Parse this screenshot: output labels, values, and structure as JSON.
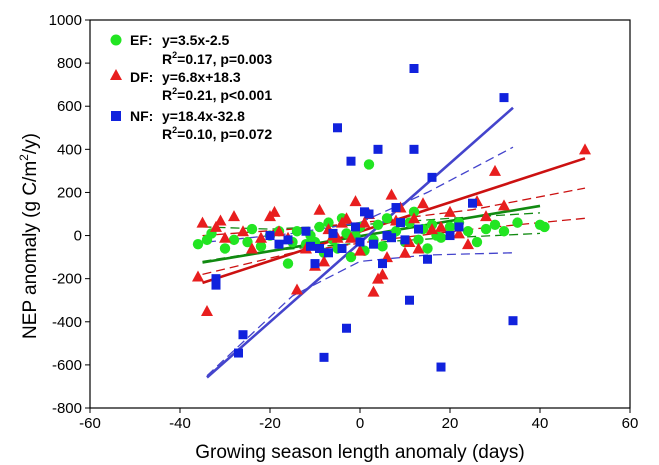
{
  "chart_data": {
    "type": "scatter",
    "title": "",
    "xlabel": "Growing season length  anomaly (days)",
    "ylabel_main": "NEP anomaly (g C/m",
    "ylabel_sup": "2",
    "ylabel_end": "/y)",
    "xlim": [
      -60,
      60
    ],
    "ylim": [
      -800,
      1000
    ],
    "xticks": [
      "-60",
      "-40",
      "-20",
      "0",
      "20",
      "40",
      "60"
    ],
    "yticks": [
      "-800",
      "-600",
      "-400",
      "-200",
      "0",
      "200",
      "400",
      "600",
      "800",
      "1000"
    ],
    "grid": false,
    "legend_position": "top-left",
    "series": [
      {
        "name": "EF",
        "marker": "circle",
        "color": "#22e522",
        "line_color": "#118a11",
        "eq_label": "EF:",
        "eq": "y=3.5x-2.5",
        "stats_pre": "R",
        "stats_sup": "2",
        "stats_post": "=0.17, p=0.003",
        "fit": {
          "slope": 3.5,
          "intercept": -2.5,
          "x_range": [
            -35,
            40
          ]
        },
        "ci_upper": [
          [
            -35,
            40
          ],
          [
            -20,
            30
          ],
          [
            0,
            50
          ],
          [
            20,
            80
          ],
          [
            40,
            105
          ]
        ],
        "ci_lower": [
          [
            -35,
            -120
          ],
          [
            -20,
            -70
          ],
          [
            0,
            -35
          ],
          [
            20,
            -10
          ],
          [
            40,
            10
          ]
        ],
        "points": [
          [
            -36,
            -40
          ],
          [
            -34,
            -20
          ],
          [
            -33,
            10
          ],
          [
            -30,
            -60
          ],
          [
            -28,
            -20
          ],
          [
            -25,
            -30
          ],
          [
            -24,
            30
          ],
          [
            -22,
            -50
          ],
          [
            -20,
            0
          ],
          [
            -18,
            20
          ],
          [
            -16,
            -130
          ],
          [
            -15,
            -30
          ],
          [
            -14,
            20
          ],
          [
            -12,
            -40
          ],
          [
            -11,
            0
          ],
          [
            -10,
            -30
          ],
          [
            -9,
            40
          ],
          [
            -8,
            -80
          ],
          [
            -7,
            60
          ],
          [
            -6,
            -20
          ],
          [
            -5,
            -60
          ],
          [
            -4,
            80
          ],
          [
            -3,
            10
          ],
          [
            -2,
            -100
          ],
          [
            -1,
            0
          ],
          [
            0,
            40
          ],
          [
            1,
            -70
          ],
          [
            2,
            330
          ],
          [
            3,
            -20
          ],
          [
            4,
            50
          ],
          [
            5,
            -50
          ],
          [
            6,
            80
          ],
          [
            7,
            0
          ],
          [
            8,
            20
          ],
          [
            10,
            -30
          ],
          [
            11,
            60
          ],
          [
            12,
            110
          ],
          [
            13,
            -20
          ],
          [
            14,
            30
          ],
          [
            15,
            -60
          ],
          [
            16,
            50
          ],
          [
            17,
            0
          ],
          [
            18,
            -10
          ],
          [
            20,
            40
          ],
          [
            22,
            60
          ],
          [
            24,
            20
          ],
          [
            26,
            -30
          ],
          [
            28,
            30
          ],
          [
            30,
            50
          ],
          [
            32,
            20
          ],
          [
            35,
            60
          ],
          [
            40,
            50
          ],
          [
            41,
            40
          ]
        ]
      },
      {
        "name": "DF",
        "marker": "triangle",
        "color": "#e81e1e",
        "line_color": "#cc1111",
        "eq_label": "DF:",
        "eq": "y=6.8x+18.3",
        "stats_pre": "R",
        "stats_sup": "2",
        "stats_post": "=0.21, p<0.001",
        "fit": {
          "slope": 6.8,
          "intercept": 18.3,
          "x_range": [
            -35,
            50
          ]
        },
        "ci_upper": [
          [
            -35,
            0
          ],
          [
            -15,
            30
          ],
          [
            5,
            70
          ],
          [
            25,
            120
          ],
          [
            50,
            220
          ]
        ],
        "ci_lower": [
          [
            -35,
            -180
          ],
          [
            -15,
            -80
          ],
          [
            5,
            -20
          ],
          [
            25,
            30
          ],
          [
            50,
            80
          ]
        ],
        "points": [
          [
            -36,
            -190
          ],
          [
            -35,
            60
          ],
          [
            -34,
            -350
          ],
          [
            -32,
            40
          ],
          [
            -31,
            70
          ],
          [
            -30,
            -10
          ],
          [
            -28,
            90
          ],
          [
            -26,
            20
          ],
          [
            -24,
            -60
          ],
          [
            -22,
            -10
          ],
          [
            -20,
            90
          ],
          [
            -19,
            110
          ],
          [
            -18,
            20
          ],
          [
            -16,
            -10
          ],
          [
            -14,
            -250
          ],
          [
            -12,
            -60
          ],
          [
            -10,
            -140
          ],
          [
            -9,
            120
          ],
          [
            -8,
            -120
          ],
          [
            -7,
            30
          ],
          [
            -6,
            0
          ],
          [
            -5,
            -10
          ],
          [
            -4,
            60
          ],
          [
            -3,
            80
          ],
          [
            -2,
            -10
          ],
          [
            -1,
            160
          ],
          [
            0,
            -70
          ],
          [
            1,
            60
          ],
          [
            2,
            100
          ],
          [
            3,
            -260
          ],
          [
            4,
            -200
          ],
          [
            5,
            -180
          ],
          [
            6,
            -100
          ],
          [
            7,
            190
          ],
          [
            8,
            70
          ],
          [
            9,
            130
          ],
          [
            10,
            -80
          ],
          [
            11,
            -30
          ],
          [
            12,
            80
          ],
          [
            13,
            -60
          ],
          [
            14,
            150
          ],
          [
            16,
            30
          ],
          [
            18,
            40
          ],
          [
            20,
            110
          ],
          [
            22,
            10
          ],
          [
            24,
            -40
          ],
          [
            26,
            160
          ],
          [
            28,
            90
          ],
          [
            30,
            300
          ],
          [
            32,
            140
          ],
          [
            50,
            400
          ]
        ]
      },
      {
        "name": "NF",
        "marker": "square",
        "color": "#1122dd",
        "line_color": "#4444cc",
        "eq_label": "NF:",
        "eq": "y=18.4x-32.8",
        "stats_pre": "R",
        "stats_sup": "2",
        "stats_post": "=0.10, p=0.072",
        "fit": {
          "slope": 18.4,
          "intercept": -32.8,
          "x_range": [
            -34,
            34
          ]
        },
        "ci_upper": [
          [
            -34,
            -30
          ],
          [
            -15,
            10
          ],
          [
            0,
            60
          ],
          [
            15,
            200
          ],
          [
            34,
            410
          ]
        ],
        "ci_lower": [
          [
            -34,
            -650
          ],
          [
            -15,
            -280
          ],
          [
            0,
            -120
          ],
          [
            15,
            -90
          ],
          [
            34,
            -80
          ]
        ],
        "points": [
          [
            -32,
            -200
          ],
          [
            -32,
            -230
          ],
          [
            -26,
            -460
          ],
          [
            -27,
            -545
          ],
          [
            -20,
            0
          ],
          [
            -18,
            -40
          ],
          [
            -16,
            -20
          ],
          [
            -12,
            20
          ],
          [
            -11,
            -50
          ],
          [
            -10,
            -130
          ],
          [
            -9,
            -60
          ],
          [
            -8,
            -565
          ],
          [
            -7,
            -80
          ],
          [
            -6,
            10
          ],
          [
            -5,
            500
          ],
          [
            -4,
            -60
          ],
          [
            -3,
            -430
          ],
          [
            -2,
            345
          ],
          [
            -1,
            40
          ],
          [
            0,
            -30
          ],
          [
            1,
            110
          ],
          [
            2,
            100
          ],
          [
            3,
            -40
          ],
          [
            4,
            400
          ],
          [
            5,
            -130
          ],
          [
            6,
            0
          ],
          [
            7,
            -10
          ],
          [
            8,
            130
          ],
          [
            9,
            60
          ],
          [
            10,
            -20
          ],
          [
            11,
            -300
          ],
          [
            12,
            775
          ],
          [
            12,
            400
          ],
          [
            13,
            30
          ],
          [
            15,
            -110
          ],
          [
            16,
            270
          ],
          [
            18,
            -610
          ],
          [
            20,
            0
          ],
          [
            22,
            40
          ],
          [
            25,
            150
          ],
          [
            32,
            640
          ],
          [
            34,
            -395
          ]
        ]
      }
    ]
  }
}
